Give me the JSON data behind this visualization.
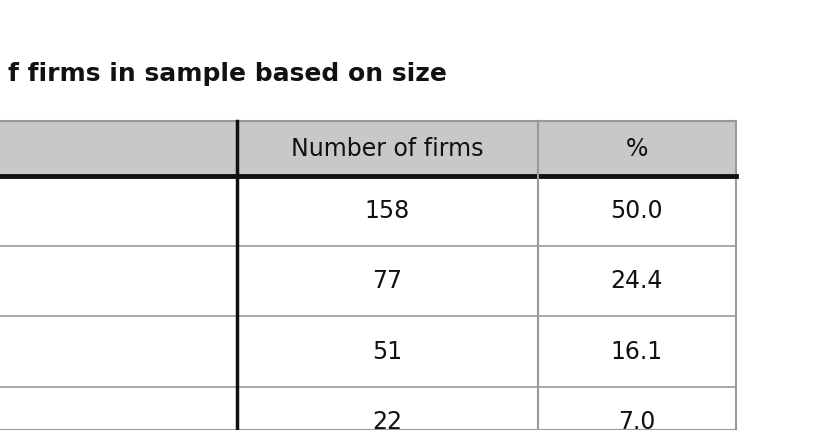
{
  "full_title": "f firms in sample based on size",
  "columns": [
    "",
    "Number of firms",
    "%"
  ],
  "rows": [
    [
      "",
      "158",
      "50.0"
    ],
    [
      "",
      "77",
      "24.4"
    ],
    [
      "",
      "51",
      "16.1"
    ],
    [
      "",
      "22",
      "7.0"
    ]
  ],
  "header_bg": "#c8c8c8",
  "row_bg_white": "#ffffff",
  "border_color_heavy": "#111111",
  "border_color_light": "#999999",
  "background": "#ffffff",
  "title_fontsize": 18,
  "cell_fontsize": 17,
  "header_fontsize": 17
}
